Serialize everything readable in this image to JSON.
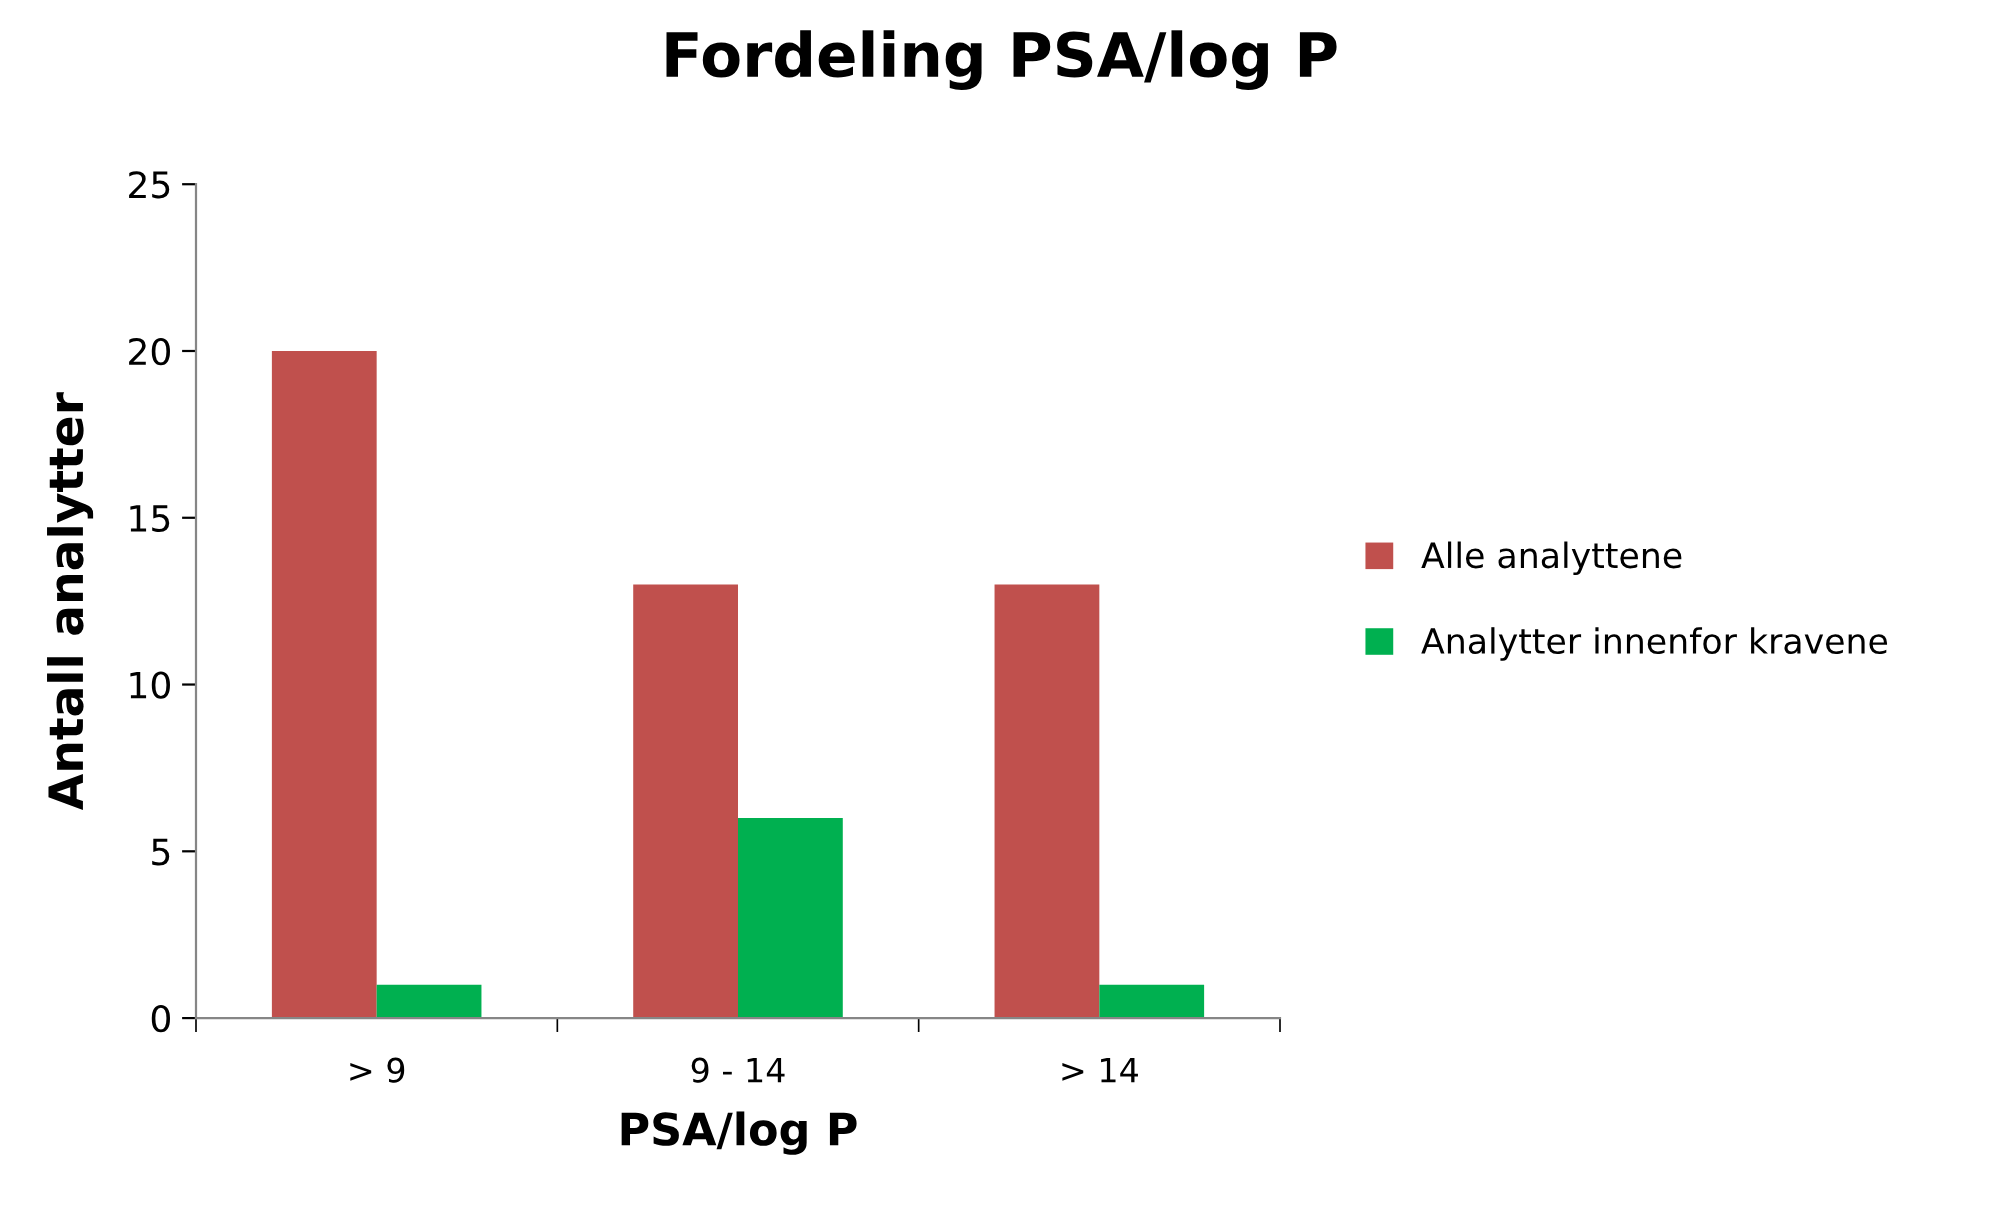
{
  "chart_data": {
    "type": "bar",
    "title": "Fordeling PSA/log P",
    "xlabel": "PSA/log P",
    "ylabel": "Antall analytter",
    "categories": [
      "> 9",
      "9 - 14",
      "> 14"
    ],
    "series": [
      {
        "name": "Alle analyttene",
        "color": "#c0504d",
        "values": [
          20,
          13,
          13
        ]
      },
      {
        "name": "Analytter innenfor kravene",
        "color": "#00b050",
        "values": [
          1,
          6,
          1
        ]
      }
    ],
    "ylim": [
      0,
      25
    ],
    "yticks": [
      0,
      5,
      10,
      15,
      20,
      25
    ],
    "grid": false,
    "legend": "right"
  }
}
